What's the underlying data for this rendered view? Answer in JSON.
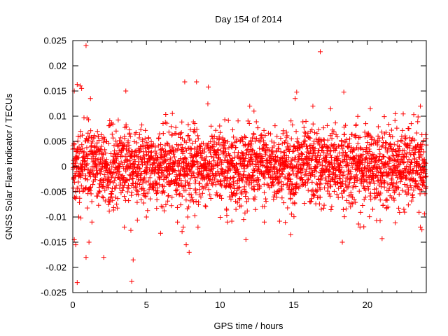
{
  "chart_data": {
    "type": "scatter",
    "title": "Day 154 of 2014",
    "xlabel": "GPS time / hours",
    "ylabel": "GNSS Solar Flare indicator / TECUs",
    "xlim": [
      0,
      24
    ],
    "ylim": [
      -0.025,
      0.025
    ],
    "x_ticks": [
      0,
      5,
      10,
      15,
      20
    ],
    "x_tick_labels": [
      "0",
      "5",
      "10",
      "15",
      "20"
    ],
    "y_ticks": [
      -0.025,
      -0.02,
      -0.015,
      -0.01,
      -0.005,
      0,
      0.005,
      0.01,
      0.015,
      0.02,
      0.025
    ],
    "y_tick_labels": [
      "-0.025",
      "-0.02",
      "-0.015",
      "-0.01",
      "-0.005",
      "0",
      "0.005",
      "0.01",
      "0.015",
      "0.02",
      "0.025"
    ],
    "grid": false,
    "marker": "+",
    "marker_color": "#ff0000",
    "series": [
      {
        "name": "solar flare indicator",
        "note": "approx. one point every 30 s; bulk of values within about ±0.005 TECU",
        "point_count": 2880,
        "spread_sd": 0.0038,
        "notable_points": [
          {
            "x": 0.9,
            "y": 0.024
          },
          {
            "x": 16.8,
            "y": 0.0228
          },
          {
            "x": 4.0,
            "y": -0.0228
          },
          {
            "x": 0.3,
            "y": -0.023
          },
          {
            "x": 4.1,
            "y": -0.0185
          },
          {
            "x": 0.9,
            "y": -0.018
          },
          {
            "x": 2.1,
            "y": -0.018
          },
          {
            "x": 7.9,
            "y": -0.017
          },
          {
            "x": 7.7,
            "y": -0.0155
          },
          {
            "x": 18.3,
            "y": -0.015
          },
          {
            "x": 0.2,
            "y": -0.0155
          },
          {
            "x": 0.1,
            "y": -0.0145
          },
          {
            "x": 1.1,
            "y": -0.015
          },
          {
            "x": 0.3,
            "y": 0.0163
          },
          {
            "x": 0.5,
            "y": 0.016
          },
          {
            "x": 0.1,
            "y": 0.015
          },
          {
            "x": 0.6,
            "y": 0.0155
          },
          {
            "x": 1.2,
            "y": 0.0135
          },
          {
            "x": 3.6,
            "y": 0.015
          },
          {
            "x": 7.6,
            "y": 0.0168
          },
          {
            "x": 8.4,
            "y": 0.0168
          },
          {
            "x": 9.2,
            "y": 0.0158
          },
          {
            "x": 15.2,
            "y": 0.0148
          },
          {
            "x": 18.4,
            "y": 0.0148
          },
          {
            "x": 23.6,
            "y": 0.012
          },
          {
            "x": 23.6,
            "y": -0.012
          },
          {
            "x": 23.7,
            "y": -0.0125
          },
          {
            "x": 0.4,
            "y": -0.01
          },
          {
            "x": 1.3,
            "y": -0.011
          },
          {
            "x": 3.5,
            "y": -0.012
          },
          {
            "x": 14.8,
            "y": -0.0135
          },
          {
            "x": 13.0,
            "y": -0.011
          },
          {
            "x": 10.5,
            "y": -0.011
          },
          {
            "x": 19.5,
            "y": -0.012
          },
          {
            "x": 7.5,
            "y": -0.012
          },
          {
            "x": 8.5,
            "y": -0.012
          },
          {
            "x": 5.0,
            "y": -0.01
          },
          {
            "x": 11.6,
            "y": -0.0105
          },
          {
            "x": 12.3,
            "y": 0.011
          },
          {
            "x": 15.1,
            "y": 0.0135
          },
          {
            "x": 16.3,
            "y": 0.012
          },
          {
            "x": 17.5,
            "y": 0.0115
          },
          {
            "x": 20.2,
            "y": 0.0115
          },
          {
            "x": 21.9,
            "y": 0.0105
          }
        ]
      }
    ]
  }
}
